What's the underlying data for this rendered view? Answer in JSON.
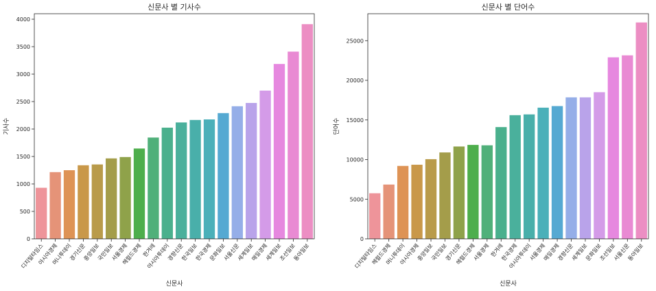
{
  "chart_data": [
    {
      "type": "bar",
      "title": "신문사 별 기사수",
      "xlabel": "신문사",
      "ylabel": "기사수",
      "ylim": [
        0,
        4100
      ],
      "yticks": [
        0,
        500,
        1000,
        1500,
        2000,
        2500,
        3000,
        3500,
        4000
      ],
      "categories": [
        "디지털타임스",
        "아시아경제",
        "머니투데이",
        "경기신문",
        "중앙일보",
        "국민일보",
        "서울경제",
        "헤럴드경제",
        "한겨레",
        "아시아투데이",
        "경향신문",
        "한국일보",
        "한국경제",
        "문화일보",
        "서울신문",
        "세계일보",
        "매일경제",
        "세계일보",
        "조선일보",
        "동아일보"
      ],
      "values": [
        930,
        1215,
        1250,
        1340,
        1355,
        1465,
        1490,
        1645,
        1845,
        2025,
        2120,
        2165,
        2175,
        2290,
        2415,
        2475,
        2700,
        3185,
        3410,
        3910
      ],
      "colors": [
        "#ee949a",
        "#e59378",
        "#de9355",
        "#c99849",
        "#b99b4a",
        "#a49d4a",
        "#8fa24a",
        "#4eae4c",
        "#50b07a",
        "#4ab08d",
        "#4ab09c",
        "#49afaa",
        "#4bb0b9",
        "#55a9d2",
        "#95aee8",
        "#b9a3ea",
        "#d49be8",
        "#e688df",
        "#e98ad3",
        "#ec8ec3"
      ]
    },
    {
      "type": "bar",
      "title": "신문사 별 단어수",
      "xlabel": "신문사",
      "ylabel": "단어수",
      "ylim": [
        0,
        28400
      ],
      "yticks": [
        0,
        5000,
        10000,
        15000,
        20000,
        25000
      ],
      "categories": [
        "디지털타임스",
        "헤럴드경제",
        "머니투데이",
        "아시아경제",
        "중앙일보",
        "국민일보",
        "경기신문",
        "헤럴드경제",
        "서울경제",
        "한겨레",
        "한국경제",
        "아시아투데이",
        "서울경제",
        "매일경제",
        "경향신문",
        "세계일보",
        "문화일보",
        "조선일보",
        "서울신문",
        "동아일보"
      ],
      "values": [
        5750,
        6850,
        9200,
        9350,
        10050,
        10900,
        11650,
        11850,
        11800,
        14100,
        15600,
        15700,
        16550,
        16750,
        17850,
        17850,
        18500,
        22900,
        23150,
        27300
      ],
      "colors": [
        "#ee949a",
        "#e59378",
        "#de9355",
        "#c99849",
        "#b99b4a",
        "#a49d4a",
        "#8fa24a",
        "#4eae4c",
        "#50b07a",
        "#4ab08d",
        "#4ab09c",
        "#49afaa",
        "#4bb0b9",
        "#55a9d2",
        "#95aee8",
        "#b9a3ea",
        "#d49be8",
        "#e688df",
        "#e98ad3",
        "#ec8ec3"
      ]
    }
  ]
}
